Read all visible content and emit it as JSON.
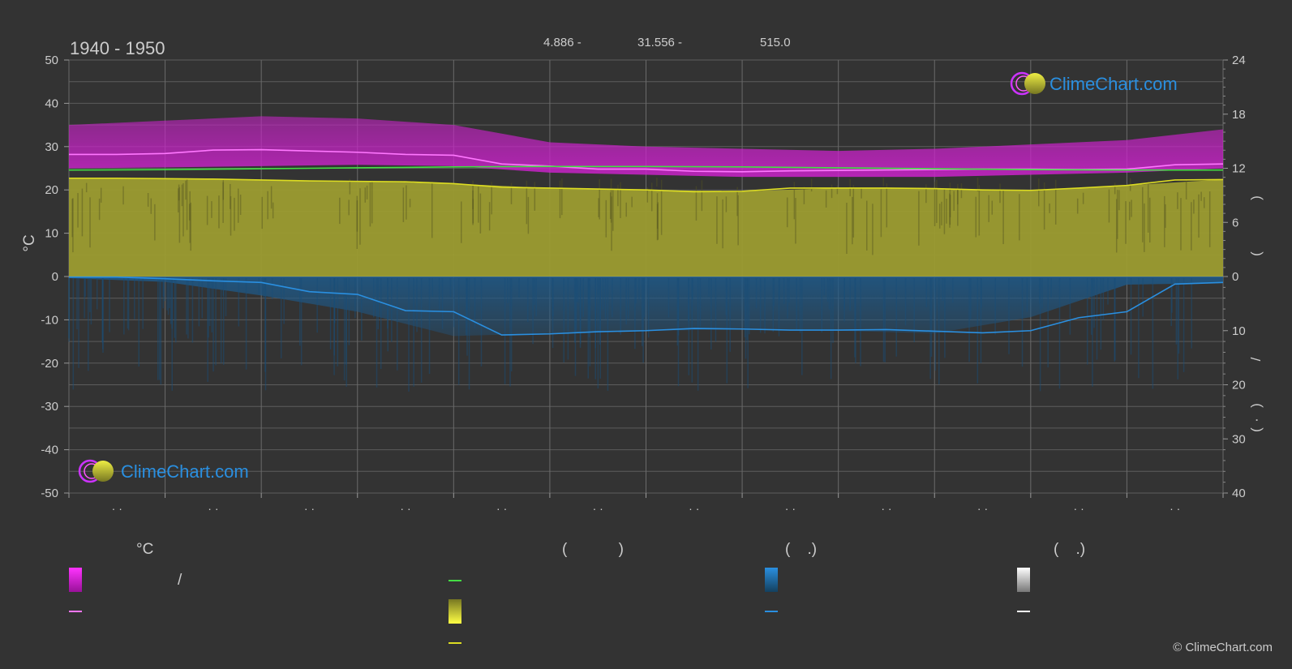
{
  "chart_data": {
    "type": "area",
    "title": "1940 - 1950",
    "subtitle": {
      "lat": "4.886 -",
      "lon": "31.556 -",
      "elevation": "515.0"
    },
    "y_left": {
      "label": "°C",
      "range": [
        -50,
        50
      ],
      "ticks": [
        "50",
        "40",
        "30",
        "20",
        "10",
        "0",
        "-10",
        "-20",
        "-30",
        "-40",
        "-50"
      ]
    },
    "y_right_top": {
      "range": [
        0,
        24
      ],
      "ticks": [
        "24",
        "18",
        "12",
        "6",
        "0"
      ],
      "label_glyphs": [
        "(",
        ")"
      ]
    },
    "y_right_bottom": {
      "range": [
        0,
        40
      ],
      "ticks": [
        "10",
        "20",
        "30",
        "40"
      ],
      "label_glyphs": [
        "/",
        "(",
        "·",
        ")"
      ]
    },
    "x_tick_labels": [
      "· ·",
      "· ·",
      "· ·",
      "· ·",
      "· ·",
      "· ·",
      "· ·",
      "· ·",
      "· ·",
      "· ·",
      "· ·",
      "· ·"
    ],
    "months": 12,
    "grid": true,
    "series": [
      {
        "key": "max_temp_line",
        "color": "#ff77ff",
        "x": [
          0,
          0.5,
          1,
          1.5,
          2,
          2.5,
          3,
          3.5,
          4,
          4.5,
          5,
          5.5,
          6,
          6.5,
          7,
          7.5,
          8,
          8.5,
          9,
          9.5,
          10,
          10.5,
          11,
          11.5,
          12
        ],
        "values": [
          28.2,
          28.2,
          28.4,
          29.2,
          29.3,
          29.0,
          28.7,
          28.2,
          28.0,
          26.0,
          25.5,
          24.8,
          24.8,
          24.3,
          24.2,
          24.4,
          24.5,
          24.6,
          24.7,
          24.8,
          24.8,
          24.7,
          24.8,
          25.8,
          26.0
        ]
      },
      {
        "key": "daylight_line",
        "color": "#44dd44",
        "x": [
          0,
          1,
          2,
          3,
          4,
          5,
          6,
          7,
          8,
          9,
          10,
          11,
          12
        ],
        "values": [
          11.8,
          11.85,
          11.95,
          12.05,
          12.15,
          12.2,
          12.2,
          12.15,
          12.05,
          11.95,
          11.85,
          11.8,
          11.8
        ]
      },
      {
        "key": "sunshine_line",
        "color": "#dddd22",
        "x": [
          0,
          0.5,
          1,
          1.5,
          2,
          2.5,
          3,
          3.5,
          4,
          4.5,
          5,
          5.5,
          6,
          6.5,
          7,
          7.5,
          8,
          8.5,
          9,
          9.5,
          10,
          10.5,
          11,
          11.5,
          12
        ],
        "values": [
          10.9,
          10.9,
          10.85,
          10.8,
          10.7,
          10.6,
          10.55,
          10.5,
          10.3,
          9.9,
          9.8,
          9.7,
          9.6,
          9.4,
          9.45,
          9.8,
          9.8,
          9.8,
          9.75,
          9.6,
          9.55,
          9.8,
          10.1,
          10.7,
          10.75
        ]
      },
      {
        "key": "precipitation_line",
        "color": "#2a8fe0",
        "x": [
          0,
          0.5,
          1,
          1.5,
          2,
          2.5,
          3,
          3.5,
          4,
          4.5,
          5,
          5.5,
          6,
          6.5,
          7,
          7.5,
          8,
          8.5,
          9,
          9.5,
          10,
          10.5,
          11,
          11.5,
          12
        ],
        "values": [
          0.1,
          0.1,
          0.4,
          0.8,
          1.1,
          2.8,
          3.3,
          6.3,
          6.5,
          10.8,
          10.6,
          10.2,
          10.0,
          9.6,
          9.7,
          9.9,
          9.9,
          9.8,
          10.1,
          10.4,
          10.0,
          7.6,
          6.5,
          1.4,
          1.1
        ]
      }
    ],
    "bands": [
      {
        "key": "temp_range_band",
        "color": "#cc22cc",
        "low": [
          25.0,
          25.2,
          25.5,
          25.8,
          25.5,
          24.0,
          23.5,
          23.0,
          23.0,
          23.0,
          23.5,
          24.0,
          25.0
        ],
        "high": [
          35.0,
          36.0,
          37.0,
          36.5,
          35.0,
          31.0,
          30.0,
          29.5,
          29.0,
          29.5,
          30.5,
          31.5,
          34.0
        ]
      },
      {
        "key": "sunshine_area",
        "color": "#9c9c30",
        "low": [
          0,
          0,
          0,
          0,
          0,
          0,
          0,
          0,
          0,
          0,
          0,
          0,
          0
        ],
        "high": [
          10.9,
          10.85,
          10.7,
          10.55,
          10.3,
          9.8,
          9.6,
          9.45,
          9.8,
          9.75,
          9.55,
          10.1,
          10.75
        ]
      },
      {
        "key": "precipitation_area",
        "color": "#1e5a8a",
        "low": [
          0,
          0,
          0,
          0,
          0,
          0,
          0,
          0,
          0,
          0,
          0,
          0,
          0
        ],
        "high": [
          0.3,
          1.0,
          3.5,
          6.5,
          11.0,
          10.5,
          10.0,
          9.8,
          10.0,
          10.5,
          7.5,
          1.5,
          1.2
        ]
      }
    ],
    "legend": {
      "placement": "bottom",
      "groups": [
        {
          "header": "°C",
          "items": [
            {
              "kind": "gradient",
              "colors": [
                "#ff33ff",
                "#991199"
              ],
              "label": "/"
            },
            {
              "kind": "line",
              "color": "#ff77ff",
              "label": ""
            }
          ]
        },
        {
          "header": "(            )",
          "items": [
            {
              "kind": "line",
              "color": "#44dd44",
              "label": ""
            },
            {
              "kind": "gradient",
              "colors": [
                "#ffff44",
                "#777722"
              ],
              "label": ""
            },
            {
              "kind": "line",
              "color": "#dddd22",
              "label": ""
            }
          ]
        },
        {
          "header": "(    .)",
          "items": [
            {
              "kind": "gradient",
              "colors": [
                "#2a8fe0",
                "#14405e"
              ],
              "label": ""
            },
            {
              "kind": "line",
              "color": "#2a8fe0",
              "label": ""
            }
          ]
        },
        {
          "header": "(    .)",
          "items": [
            {
              "kind": "gradient",
              "colors": [
                "#ffffff",
                "#888888"
              ],
              "label": ""
            },
            {
              "kind": "line",
              "color": "#ffffff",
              "label": ""
            }
          ]
        }
      ]
    }
  },
  "branding": {
    "logo_text": "ClimeChart.com",
    "copyright": "© ClimeChart.com"
  },
  "colors": {
    "background": "#333333",
    "grid": "#5a5a5a",
    "text": "#cccccc",
    "logo_text": "#2a8fe0"
  }
}
